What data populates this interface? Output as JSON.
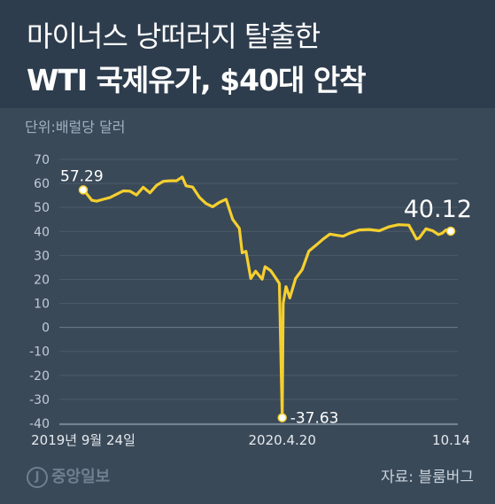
{
  "header": {
    "title_line1": "마이너스 낭떠러지 탈출한",
    "title_line2": "WTI 국제유가, $40대 안착"
  },
  "unit_label": "단위:배럴당 달러",
  "source": "자료: 블룸버그",
  "logo_text": "중앙일보",
  "colors": {
    "background": "#3a4958",
    "header": "#2e3d4d",
    "line": "#f5cf2e",
    "gridline": "#4c5b69"
  },
  "chart_data": {
    "type": "line",
    "title": "",
    "xlabel": "",
    "ylabel": "",
    "ylim": [
      -40,
      70
    ],
    "yticks": [
      70,
      60,
      50,
      40,
      30,
      20,
      10,
      0,
      -10,
      -20,
      -30,
      -40
    ],
    "x_tick_labels": [
      "2019년 9월 24일",
      "2020.4.20",
      "10.14"
    ],
    "x_tick_dates": [
      "2019-09-24",
      "2020-04-20",
      "2020-10-14"
    ],
    "grid": true,
    "series": [
      {
        "x": [
          "2019-09-24",
          "2019-09-27",
          "2019-10-03",
          "2019-10-08",
          "2019-10-15",
          "2019-10-22",
          "2019-10-29",
          "2019-11-05",
          "2019-11-12",
          "2019-11-19",
          "2019-11-26",
          "2019-12-03",
          "2019-12-10",
          "2019-12-17",
          "2019-12-24",
          "2019-12-31",
          "2020-01-06",
          "2020-01-10",
          "2020-01-17",
          "2020-01-24",
          "2020-01-31",
          "2020-02-07",
          "2020-02-14",
          "2020-02-21",
          "2020-02-28",
          "2020-03-06",
          "2020-03-09",
          "2020-03-13",
          "2020-03-18",
          "2020-03-23",
          "2020-03-30",
          "2020-04-02",
          "2020-04-08",
          "2020-04-14",
          "2020-04-17",
          "2020-04-20",
          "2020-04-21",
          "2020-04-24",
          "2020-04-28",
          "2020-05-04",
          "2020-05-11",
          "2020-05-18",
          "2020-05-26",
          "2020-06-02",
          "2020-06-09",
          "2020-06-16",
          "2020-06-23",
          "2020-06-30",
          "2020-07-10",
          "2020-07-20",
          "2020-07-31",
          "2020-08-10",
          "2020-08-20",
          "2020-08-31",
          "2020-09-04",
          "2020-09-08",
          "2020-09-11",
          "2020-09-18",
          "2020-09-25",
          "2020-10-01",
          "2020-10-05",
          "2020-10-09",
          "2020-10-14"
        ],
        "values": [
          57.29,
          56.0,
          53.0,
          52.6,
          53.4,
          54.1,
          55.5,
          56.9,
          56.8,
          55.2,
          58.4,
          56.1,
          59.2,
          60.9,
          61.1,
          61.1,
          62.7,
          59.0,
          58.5,
          54.2,
          51.6,
          50.3,
          52.1,
          53.4,
          45.0,
          41.3,
          31.1,
          31.7,
          20.4,
          23.4,
          20.1,
          25.3,
          23.6,
          20.1,
          18.3,
          -37.63,
          10.0,
          17.0,
          12.3,
          20.4,
          24.1,
          31.8,
          34.4,
          36.8,
          38.9,
          38.4,
          38.0,
          39.3,
          40.6,
          40.8,
          40.3,
          41.9,
          42.8,
          42.6,
          39.8,
          36.8,
          37.3,
          41.1,
          40.3,
          38.7,
          39.2,
          40.6,
          40.12
        ]
      }
    ],
    "annotations": [
      {
        "date": "2019-09-24",
        "value": 57.29,
        "label": "57.29"
      },
      {
        "date": "2020-04-20",
        "value": -37.63,
        "label": "-37.63"
      },
      {
        "date": "2020-10-14",
        "value": 40.12,
        "label": "40.12"
      }
    ]
  }
}
